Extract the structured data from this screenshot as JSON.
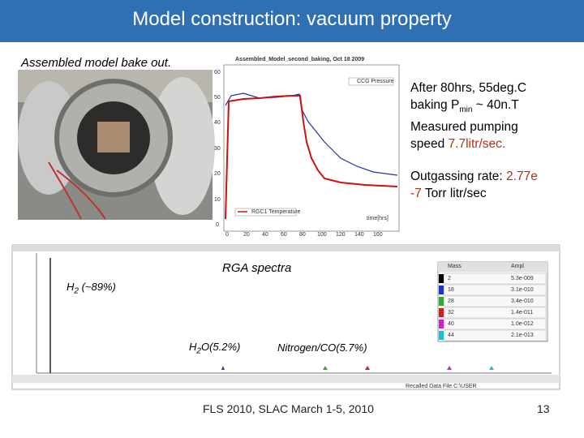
{
  "header": {
    "title": "Model construction: vacuum property"
  },
  "photo_caption": "Assembled model bake out.",
  "bake_plot": {
    "title": "Assembled_Model_second_baking, Oct 18 2009",
    "legend": [
      "CCG Pressure",
      "RGC1 Temperature"
    ],
    "y_ticks": [
      "60",
      "50",
      "40",
      "30",
      "20",
      "10",
      "0"
    ],
    "x_ticks": [
      "0",
      "20",
      "40",
      "60",
      "80",
      "100",
      "120",
      "140",
      "160"
    ],
    "x_label": "time[hrs]"
  },
  "notes": {
    "pumping": {
      "line1": "After 80hrs, 55deg.C",
      "line2_pre": "baking  P",
      "line2_sub": "min",
      "line2_post": " ~ 40n.T",
      "line3": "Measured pumping",
      "line4_pre": "speed ",
      "line4_value": "7.7litr/sec."
    },
    "outgassing": {
      "line1_pre": "Outgassing rate: ",
      "line1_value": "2.77e",
      "line2_value": "-7",
      "line2_post": " Torr litr/sec"
    }
  },
  "rga": {
    "title": "RGA spectra",
    "h2_pre": "H",
    "h2_sub": "2",
    "h2_post": " (~89%)",
    "h2o_pre": "H",
    "h2o_sub": "2",
    "h2o_post": "O(5.2%)",
    "n2": "Nitrogen/CO(5.7%)",
    "table": {
      "headers": [
        "Mass",
        "Ampl"
      ],
      "rows": [
        [
          "2",
          "5.3e-009"
        ],
        [
          "18",
          "3.1e-010"
        ],
        [
          "28",
          "3.4e-010"
        ],
        [
          "32",
          "1.4e-011"
        ],
        [
          "40",
          "1.0e-012"
        ],
        [
          "44",
          "2.1e-013"
        ]
      ]
    },
    "status": "Recalled Data File C:\\USER"
  },
  "footer": {
    "text": "FLS 2010, SLAC March 1-5, 2010",
    "page": "13"
  }
}
